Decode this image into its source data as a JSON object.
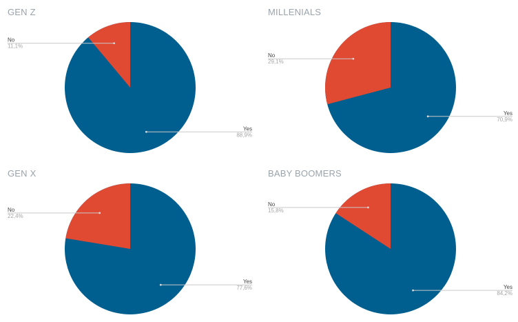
{
  "colors": {
    "yes": "#005f8f",
    "no": "#e04a33",
    "leader": "#c9c9c9",
    "title": "#9aa3ab"
  },
  "chart_data": [
    {
      "type": "pie",
      "title": "GEN Z",
      "slices": [
        {
          "label": "No",
          "pct_text": "11,1%",
          "value": 11.1
        },
        {
          "label": "Yes",
          "pct_text": "88,9%",
          "value": 88.9
        }
      ]
    },
    {
      "type": "pie",
      "title": "MILLENIALS",
      "slices": [
        {
          "label": "No",
          "pct_text": "29,1%",
          "value": 29.1
        },
        {
          "label": "Yes",
          "pct_text": "70,9%",
          "value": 70.9
        }
      ]
    },
    {
      "type": "pie",
      "title": "GEN X",
      "slices": [
        {
          "label": "No",
          "pct_text": "22,4%",
          "value": 22.4
        },
        {
          "label": "Yes",
          "pct_text": "77,6%",
          "value": 77.6
        }
      ]
    },
    {
      "type": "pie",
      "title": "BABY BOOMERS",
      "slices": [
        {
          "label": "No",
          "pct_text": "15,8%",
          "value": 15.8
        },
        {
          "label": "Yes",
          "pct_text": "84,2%",
          "value": 84.2
        }
      ]
    }
  ]
}
